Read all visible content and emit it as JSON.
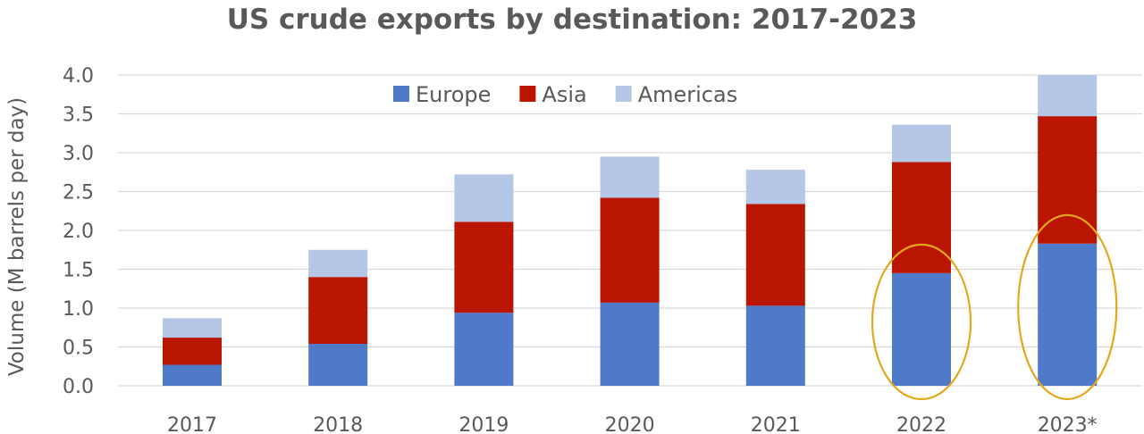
{
  "chart_data": {
    "type": "bar",
    "stacked": true,
    "title": "US crude exports by destination: 2017-2023",
    "ylabel": "Volume (M barrels per day)",
    "xlabel": "",
    "categories": [
      "2017",
      "2018",
      "2019",
      "2020",
      "2021",
      "2022",
      "2023*"
    ],
    "series": [
      {
        "name": "Europe",
        "color": "#4f7ac9",
        "values": [
          0.27,
          0.54,
          0.94,
          1.07,
          1.03,
          1.45,
          1.83
        ]
      },
      {
        "name": "Asia",
        "color": "#b91500",
        "values": [
          0.35,
          0.86,
          1.17,
          1.35,
          1.31,
          1.43,
          1.64
        ]
      },
      {
        "name": "Americas",
        "color": "#b4c7e7",
        "values": [
          0.25,
          0.35,
          0.61,
          0.53,
          0.44,
          0.48,
          0.53
        ]
      }
    ],
    "ylim": [
      0,
      4.0
    ],
    "yticks": [
      "0.0",
      "0.5",
      "1.0",
      "1.5",
      "2.0",
      "2.5",
      "3.0",
      "3.5",
      "4.0"
    ],
    "grid": true,
    "legend_position": "top-center",
    "annotations": [
      {
        "type": "ellipse",
        "category": "2022",
        "color": "#e3a81c"
      },
      {
        "type": "ellipse",
        "category": "2023*",
        "color": "#e3a81c"
      }
    ]
  }
}
